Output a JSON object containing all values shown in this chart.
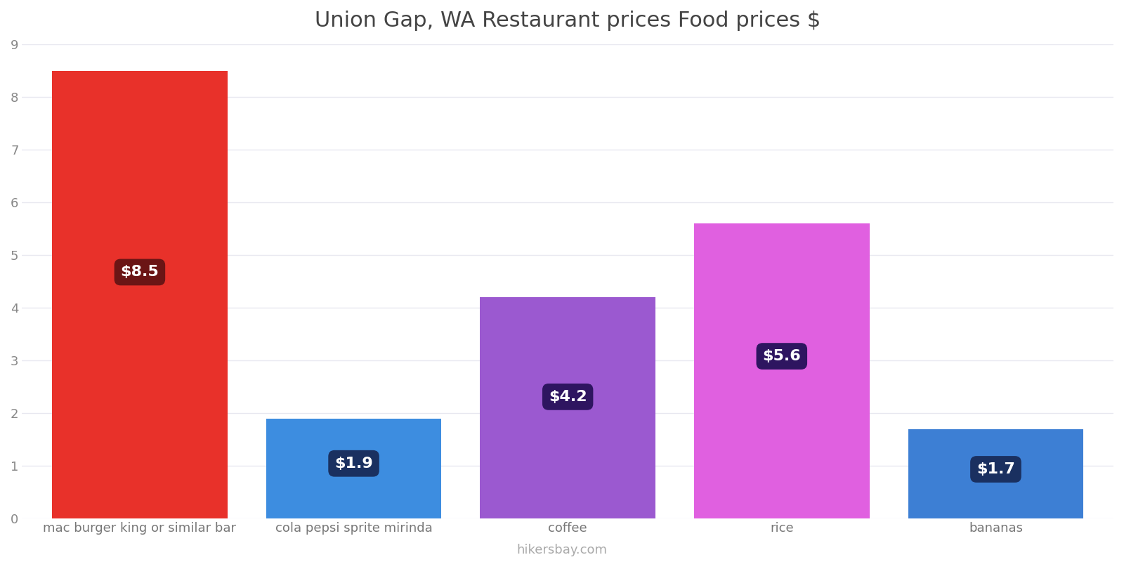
{
  "title": "Union Gap, WA Restaurant prices Food prices $",
  "categories": [
    "mac burger king or similar bar",
    "cola pepsi sprite mirinda",
    "coffee",
    "rice",
    "bananas"
  ],
  "values": [
    8.5,
    1.9,
    4.2,
    5.6,
    1.7
  ],
  "bar_colors": [
    "#e8312a",
    "#3d8de0",
    "#9b59d0",
    "#e060e0",
    "#3d7fd4"
  ],
  "label_texts": [
    "$8.5",
    "$1.9",
    "$4.2",
    "$5.6",
    "$1.7"
  ],
  "label_box_colors": [
    "#6b1515",
    "#1a3060",
    "#2e1560",
    "#2e1560",
    "#1a3060"
  ],
  "ylim": [
    0,
    9
  ],
  "yticks": [
    0,
    1,
    2,
    3,
    4,
    5,
    6,
    7,
    8,
    9
  ],
  "background_color": "#ffffff",
  "grid_color": "#e8e8f0",
  "title_fontsize": 22,
  "tick_fontsize": 13,
  "label_fontsize": 16,
  "footer_text": "hikersbay.com",
  "footer_color": "#aaaaaa",
  "bar_width": 0.82
}
